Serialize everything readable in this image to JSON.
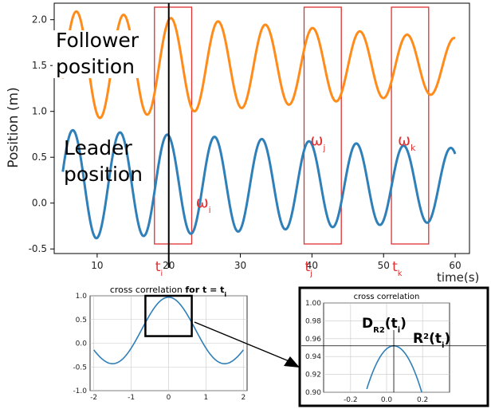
{
  "main_chart": {
    "type": "line",
    "ylabel": "Position (m)",
    "xlabel": "time(s)",
    "xlim": [
      4,
      62
    ],
    "ylim": [
      -0.55,
      2.18
    ],
    "xticks": [
      10,
      20,
      30,
      40,
      50,
      60
    ],
    "yticks": [
      -0.5,
      0.0,
      0.5,
      1.0,
      1.5,
      2.0
    ],
    "series": [
      {
        "label": "Follower position",
        "color": "#ff8c1a",
        "center": 1.5,
        "amplitude_start": 0.6,
        "amplitude_end": 0.3,
        "period_s": 6.6,
        "x_start": 5.2,
        "x_end": 60,
        "phase_shift_s": 0.0
      },
      {
        "label": "Leader position",
        "color": "#2f7fb8",
        "center": 0.2,
        "amplitude_start": 0.6,
        "amplitude_end": 0.4,
        "period_s": 6.6,
        "x_start": 5.2,
        "x_end": 60,
        "phase_shift_s": -0.5
      }
    ],
    "windows": [
      {
        "freq_main": "ω",
        "freq_sub": "i",
        "time_main": "t",
        "time_sub": "i",
        "x_from": 18,
        "x_to": 23.2
      },
      {
        "freq_main": "ω",
        "freq_sub": "j",
        "time_main": "t",
        "time_sub": "j",
        "x_from": 38.9,
        "x_to": 44.1
      },
      {
        "freq_main": "ω",
        "freq_sub": "k",
        "time_main": "t",
        "time_sub": "k",
        "x_from": 51.1,
        "x_to": 56.3
      }
    ],
    "vertical_line_x": 20.0
  },
  "cc_chart": {
    "title_prefix": "cross correlation ",
    "title_bold": "for t = t",
    "title_sub": "i",
    "xlim": [
      -2.1,
      2.1
    ],
    "ylim": [
      -1.0,
      1.0
    ],
    "xticks": [
      -2,
      -1,
      0,
      1,
      2
    ],
    "yticks": [
      -1.0,
      -0.5,
      0.0,
      0.5,
      1.0
    ],
    "color": "#2f7fb8",
    "x_start": -2.0,
    "x_end": 2.0,
    "zoom_box": {
      "x_from": -0.62,
      "x_to": 0.62,
      "y_from": 0.15,
      "y_to": 1.0
    }
  },
  "zoom_chart": {
    "title": "cross correlation",
    "xlim": [
      -0.35,
      0.35
    ],
    "ylim": [
      0.9,
      1.0
    ],
    "xticks": [
      -0.2,
      0.0,
      0.2
    ],
    "yticks": [
      0.9,
      0.92,
      0.94,
      0.96,
      0.98,
      1.0
    ],
    "peak_x": 0.04,
    "peak_y": 0.952,
    "label_d_main": "D",
    "label_d_sub": "R2",
    "label_d_arg": "(t",
    "label_d_arg_sub": "i",
    "label_d_close": ")",
    "label_r_main": "R",
    "label_r_sup": "2",
    "label_r_arg": "(t",
    "label_r_arg_sub": "i",
    "label_r_close": ")"
  }
}
